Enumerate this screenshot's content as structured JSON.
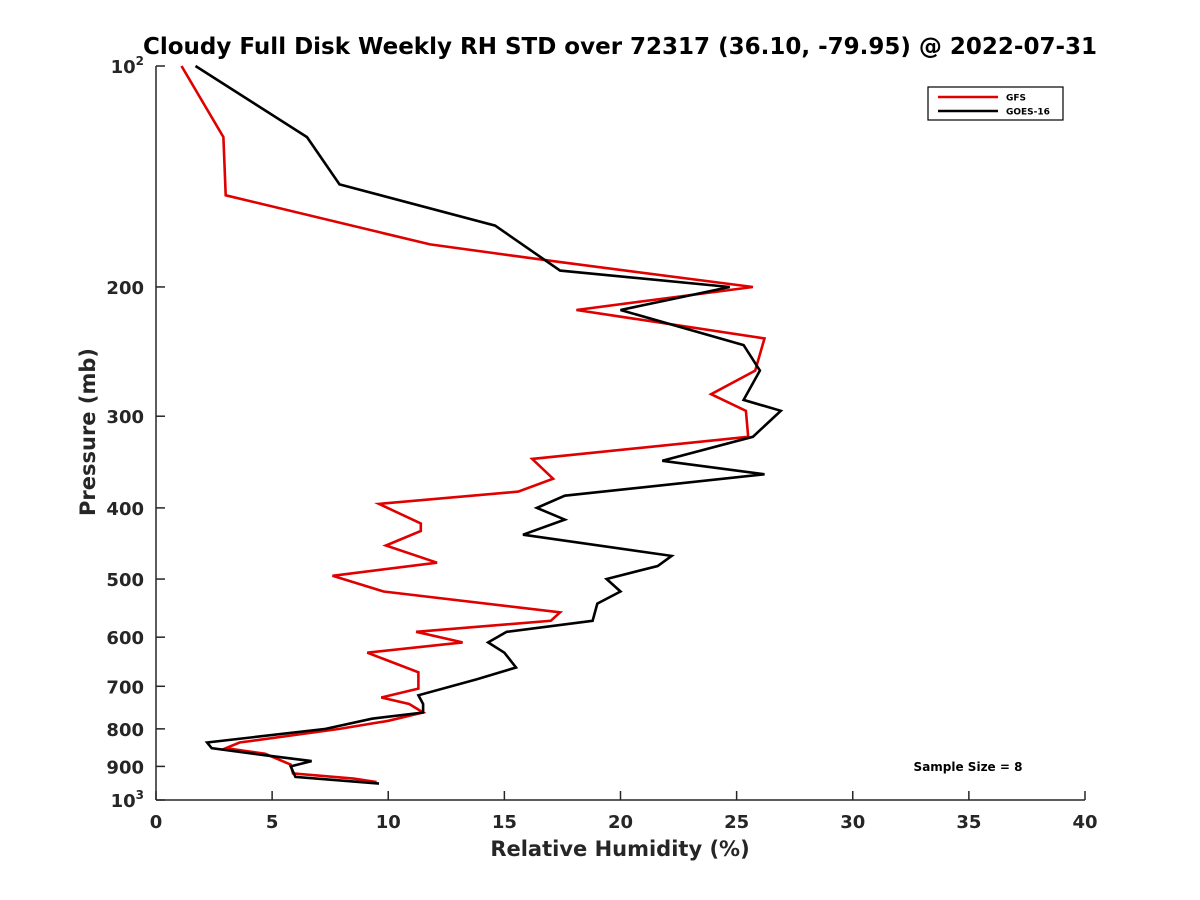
{
  "chart_data": {
    "type": "line",
    "title": "Cloudy Full Disk Weekly RH STD over 72317 (36.10, -79.95) @ 2022-07-31",
    "xlabel": "Relative Humidity (%)",
    "ylabel": "Pressure (mb)",
    "xlim": [
      0,
      40
    ],
    "ylim": [
      100,
      1000
    ],
    "yscale": "log",
    "y_inverted": true,
    "x_ticks": [
      "0",
      "5",
      "10",
      "15",
      "20",
      "25",
      "30",
      "35",
      "40"
    ],
    "y_ticks": [
      {
        "value": 100,
        "label": "10",
        "sup": "2"
      },
      {
        "value": 200,
        "label": "200"
      },
      {
        "value": 300,
        "label": "300"
      },
      {
        "value": 400,
        "label": "400"
      },
      {
        "value": 500,
        "label": "500"
      },
      {
        "value": 600,
        "label": "600"
      },
      {
        "value": 700,
        "label": "700"
      },
      {
        "value": 800,
        "label": "800"
      },
      {
        "value": 900,
        "label": "900"
      },
      {
        "value": 1000,
        "label": "10",
        "sup": "3"
      }
    ],
    "grid": false,
    "legend_position": "top-right",
    "annotation": "Sample Size = 8",
    "series": [
      {
        "name": "GFS",
        "color": "#e00000",
        "points": [
          [
            1.1,
            100
          ],
          [
            2.9,
            125
          ],
          [
            3.0,
            150
          ],
          [
            11.8,
            175
          ],
          [
            17.4,
            185
          ],
          [
            25.7,
            200
          ],
          [
            18.1,
            215
          ],
          [
            26.2,
            235
          ],
          [
            25.8,
            260
          ],
          [
            23.9,
            280
          ],
          [
            25.4,
            295
          ],
          [
            25.5,
            320
          ],
          [
            16.2,
            343
          ],
          [
            17.1,
            365
          ],
          [
            15.6,
            380
          ],
          [
            9.6,
            395
          ],
          [
            11.4,
            420
          ],
          [
            11.4,
            430
          ],
          [
            9.9,
            450
          ],
          [
            12.1,
            475
          ],
          [
            7.6,
            495
          ],
          [
            9.8,
            520
          ],
          [
            17.4,
            555
          ],
          [
            17.0,
            570
          ],
          [
            11.2,
            590
          ],
          [
            13.2,
            610
          ],
          [
            9.1,
            630
          ],
          [
            11.3,
            670
          ],
          [
            11.3,
            705
          ],
          [
            9.7,
            725
          ],
          [
            10.9,
            740
          ],
          [
            11.5,
            760
          ],
          [
            10.0,
            780
          ],
          [
            7.9,
            800
          ],
          [
            3.6,
            835
          ],
          [
            3.0,
            850
          ],
          [
            4.7,
            865
          ],
          [
            5.8,
            895
          ],
          [
            5.9,
            920
          ],
          [
            8.5,
            935
          ],
          [
            9.5,
            945
          ]
        ]
      },
      {
        "name": "GOES-16",
        "color": "#000000",
        "points": [
          [
            1.7,
            100
          ],
          [
            6.5,
            125
          ],
          [
            7.9,
            145
          ],
          [
            14.6,
            165
          ],
          [
            17.4,
            190
          ],
          [
            24.7,
            200
          ],
          [
            20.0,
            215
          ],
          [
            25.3,
            240
          ],
          [
            26.0,
            260
          ],
          [
            25.3,
            285
          ],
          [
            26.9,
            295
          ],
          [
            25.7,
            320
          ],
          [
            21.8,
            345
          ],
          [
            26.2,
            360
          ],
          [
            17.6,
            385
          ],
          [
            16.4,
            400
          ],
          [
            17.6,
            415
          ],
          [
            15.8,
            435
          ],
          [
            22.2,
            465
          ],
          [
            21.6,
            480
          ],
          [
            19.4,
            500
          ],
          [
            20.0,
            520
          ],
          [
            19.0,
            540
          ],
          [
            18.8,
            570
          ],
          [
            15.1,
            590
          ],
          [
            14.3,
            610
          ],
          [
            15.0,
            630
          ],
          [
            15.5,
            660
          ],
          [
            13.8,
            685
          ],
          [
            11.3,
            720
          ],
          [
            11.5,
            740
          ],
          [
            11.5,
            760
          ],
          [
            9.3,
            775
          ],
          [
            7.3,
            800
          ],
          [
            2.2,
            835
          ],
          [
            2.4,
            850
          ],
          [
            4.8,
            870
          ],
          [
            6.7,
            885
          ],
          [
            5.8,
            900
          ],
          [
            6.0,
            930
          ],
          [
            9.6,
            950
          ]
        ]
      }
    ]
  }
}
